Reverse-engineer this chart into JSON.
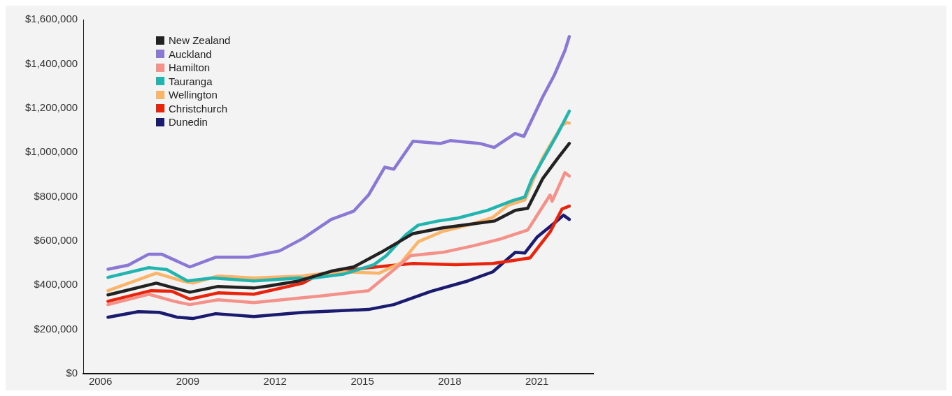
{
  "chart_data": {
    "type": "line",
    "xlim": [
      2005.41,
      2022.93
    ],
    "xticks": [
      2006,
      2009,
      2012,
      2015,
      2018,
      2021
    ],
    "ylim": [
      0,
      1600000
    ],
    "yticks": [
      {
        "value": 0,
        "label": "$0"
      },
      {
        "value": 200000,
        "label": "$200,000"
      },
      {
        "value": 400000,
        "label": "$400,000"
      },
      {
        "value": 600000,
        "label": "$600,000"
      },
      {
        "value": 800000,
        "label": "$800,000"
      },
      {
        "value": 1000000,
        "label": "$1,000,000"
      },
      {
        "value": 1200000,
        "label": "$1,200,000"
      },
      {
        "value": 1400000,
        "label": "$1,400,000"
      },
      {
        "value": 1600000,
        "label": "$1,600,000"
      }
    ],
    "grid": false,
    "legend": "top left",
    "marker": "none",
    "series": [
      {
        "name": "New Zealand",
        "color": "#222222",
        "x": [
          2006.26,
          2007.92,
          2009.07,
          2010.04,
          2011.27,
          2011.81,
          2012.83,
          2012.96,
          2013.93,
          2014.7,
          2015.64,
          2016.74,
          2017.76,
          2018.63,
          2019.55,
          2020.25,
          2020.68,
          2021.19,
          2021.7,
          2022.11
        ],
        "values": [
          356000,
          409000,
          368000,
          394000,
          387000,
          397000,
          419000,
          425000,
          463000,
          482000,
          548000,
          633000,
          659000,
          674000,
          690000,
          738000,
          747000,
          880000,
          971000,
          1040000
        ]
      },
      {
        "name": "Auckland",
        "color": "#8b78d4",
        "x": [
          2006.26,
          2006.95,
          2007.66,
          2008.1,
          2009.07,
          2009.96,
          2011.09,
          2012.16,
          2012.96,
          2013.93,
          2014.7,
          2015.21,
          2015.77,
          2016.08,
          2016.74,
          2017.69,
          2018.02,
          2019.04,
          2019.53,
          2020.25,
          2020.55,
          2021.19,
          2021.6,
          2021.96,
          2022.11
        ],
        "values": [
          472000,
          490000,
          540000,
          540000,
          482000,
          526000,
          526000,
          555000,
          611000,
          697000,
          734000,
          807000,
          933000,
          924000,
          1050000,
          1040000,
          1053000,
          1040000,
          1022000,
          1085000,
          1072000,
          1249000,
          1350000,
          1460000,
          1523000
        ]
      },
      {
        "name": "Hamilton",
        "color": "#f4928a",
        "x": [
          2006.26,
          2007.66,
          2008.53,
          2009.07,
          2010.04,
          2011.27,
          2012.96,
          2013.52,
          2015.21,
          2015.9,
          2016.66,
          2017.76,
          2018.79,
          2019.73,
          2020.68,
          2021.45,
          2021.52,
          2021.96,
          2022.11
        ],
        "values": [
          312000,
          359000,
          327000,
          312000,
          334000,
          321000,
          343000,
          350000,
          375000,
          450000,
          533000,
          548000,
          577000,
          608000,
          649000,
          807000,
          779000,
          908000,
          893000
        ]
      },
      {
        "name": "Tauranga",
        "color": "#22b5b0",
        "x": [
          2006.26,
          2007.66,
          2008.28,
          2008.99,
          2009.86,
          2011.27,
          2012.85,
          2013.08,
          2014.36,
          2015.39,
          2015.82,
          2016.49,
          2016.92,
          2017.61,
          2018.28,
          2019.3,
          2020.17,
          2020.58,
          2020.83,
          2021.7,
          2022.11
        ],
        "values": [
          435000,
          479000,
          470000,
          419000,
          432000,
          419000,
          432000,
          428000,
          450000,
          492000,
          533000,
          627000,
          671000,
          690000,
          703000,
          738000,
          782000,
          798000,
          880000,
          1082000,
          1186000
        ]
      },
      {
        "name": "Wellington",
        "color": "#fbb56a",
        "x": [
          2006.26,
          2007.92,
          2008.81,
          2009.17,
          2010.04,
          2011.27,
          2012.96,
          2013.08,
          2014.36,
          2015.57,
          2016.33,
          2016.92,
          2017.76,
          2018.63,
          2019.48,
          2019.99,
          2020.58,
          2021.19,
          2021.86,
          2022.04,
          2022.11
        ],
        "values": [
          375000,
          454000,
          419000,
          409000,
          441000,
          432000,
          441000,
          444000,
          460000,
          454000,
          501000,
          596000,
          643000,
          671000,
          706000,
          760000,
          785000,
          974000,
          1123000,
          1135000,
          1132000
        ]
      },
      {
        "name": "Christchurch",
        "color": "#e8250c",
        "x": [
          2006.26,
          2007.74,
          2008.46,
          2009.07,
          2010.04,
          2011.27,
          2012.96,
          2013.52,
          2015.21,
          2016.74,
          2018.2,
          2019.48,
          2019.99,
          2020.76,
          2021.45,
          2021.86,
          2022.11
        ],
        "values": [
          327000,
          375000,
          372000,
          337000,
          365000,
          359000,
          409000,
          450000,
          479000,
          498000,
          492000,
          498000,
          507000,
          523000,
          640000,
          744000,
          757000
        ]
      },
      {
        "name": "Dunedin",
        "color": "#1a1a6e",
        "x": [
          2006.26,
          2007.3,
          2008.02,
          2008.63,
          2009.17,
          2009.96,
          2011.27,
          2012.96,
          2013.52,
          2015.21,
          2016.08,
          2017.36,
          2018.63,
          2019.48,
          2020.25,
          2020.58,
          2021.01,
          2021.6,
          2021.91,
          2022.11
        ],
        "values": [
          255000,
          280000,
          277000,
          255000,
          249000,
          271000,
          258000,
          277000,
          280000,
          290000,
          312000,
          372000,
          419000,
          460000,
          548000,
          545000,
          618000,
          681000,
          716000,
          697000
        ]
      }
    ]
  }
}
